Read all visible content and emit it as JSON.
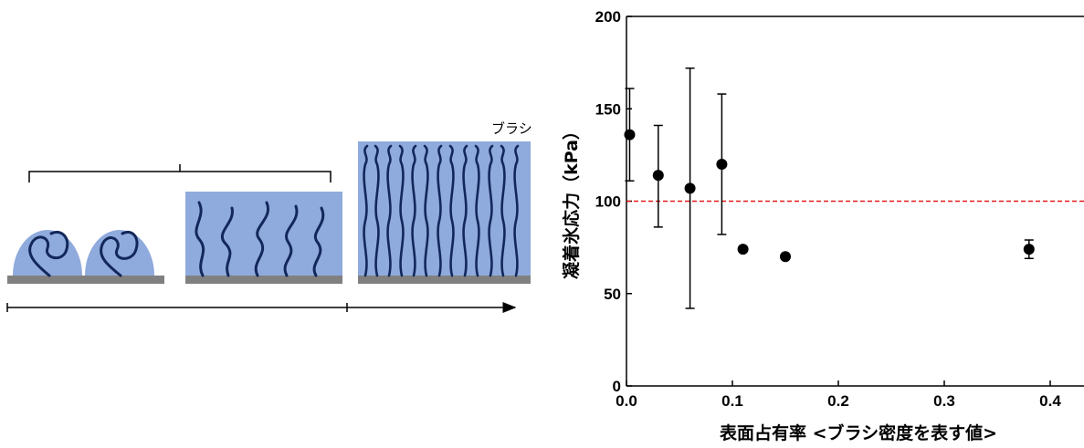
{
  "schematic": {
    "fragment_label": "ブラシ",
    "colors": {
      "polymer_fill": "#8faadc",
      "chain": "#13285a",
      "substrate": "#808080"
    }
  },
  "chart_data": {
    "type": "scatter",
    "title": "",
    "xlabel": "表面占有率 <ブラシ密度を表す値>",
    "ylabel": "凝着氷応力（kPa）",
    "xlim": [
      0,
      0.45
    ],
    "ylim": [
      0,
      200
    ],
    "xticks": [
      "0.0",
      "0.1",
      "0.2",
      "0.3",
      "0.4"
    ],
    "yticks": [
      "0",
      "50",
      "100",
      "150",
      "200"
    ],
    "grid": false,
    "legend": "none",
    "reference_line": {
      "y": 100,
      "color": "#e31a1c",
      "style": "dashed"
    },
    "marker_color": "#000000",
    "points": [
      {
        "x": 0.003,
        "y": 136,
        "ylow": 111,
        "yhigh": 161
      },
      {
        "x": 0.03,
        "y": 114,
        "ylow": 86,
        "yhigh": 141
      },
      {
        "x": 0.06,
        "y": 107,
        "ylow": 42,
        "yhigh": 172
      },
      {
        "x": 0.09,
        "y": 120,
        "ylow": 82,
        "yhigh": 158
      },
      {
        "x": 0.11,
        "y": 74,
        "ylow": null,
        "yhigh": null
      },
      {
        "x": 0.15,
        "y": 70,
        "ylow": null,
        "yhigh": null
      },
      {
        "x": 0.38,
        "y": 74,
        "ylow": 69,
        "yhigh": 79
      }
    ]
  }
}
